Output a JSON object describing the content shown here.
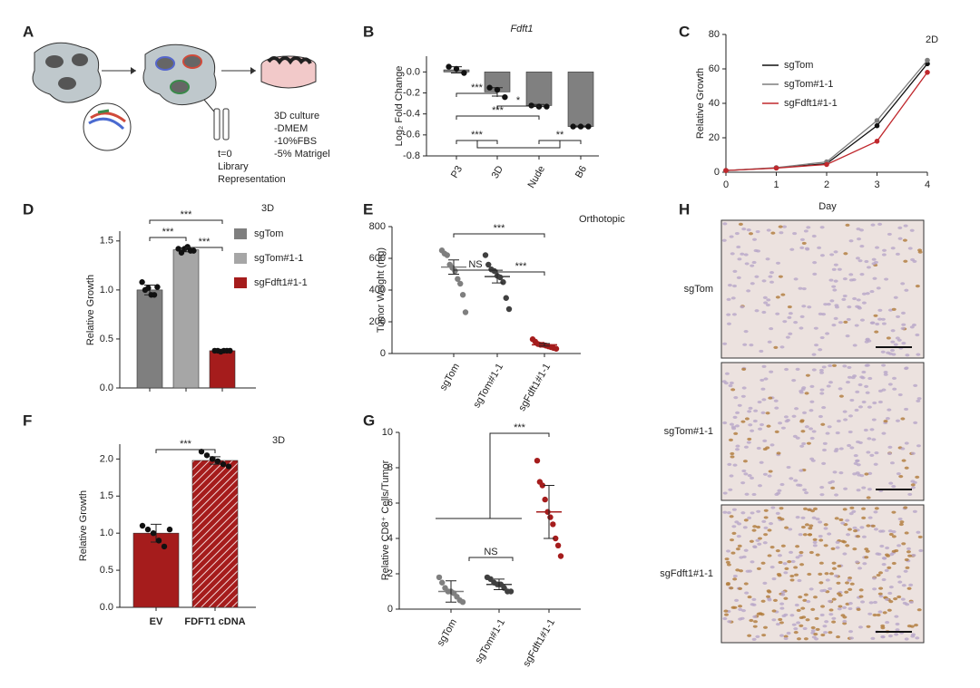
{
  "figure": {
    "A": {
      "panel": "A",
      "texts": [
        "t=0",
        "Library",
        "Representation",
        "3D culture",
        "-DMEM",
        "-10%FBS",
        "-5% Matrigel"
      ]
    },
    "H": {
      "panel": "H",
      "labels": [
        "sgTom",
        "sgTom#1-1",
        "sgFdft1#1-1"
      ]
    }
  },
  "chart_data": [
    {
      "type": "bar",
      "panel": "B",
      "title": "Fdft1",
      "ylabel": "Log₂ Fold Change",
      "categories": [
        "P3",
        "3D",
        "Nude",
        "B6"
      ],
      "values": [
        0.02,
        -0.19,
        -0.32,
        -0.52
      ],
      "errors": [
        0.03,
        0.04,
        0.01,
        0.005
      ],
      "points": [
        [
          0.05,
          0.03,
          -0.01
        ],
        [
          -0.15,
          -0.17,
          -0.24
        ],
        [
          -0.32,
          -0.33,
          -0.33
        ],
        [
          -0.52,
          -0.52,
          -0.52
        ]
      ],
      "color": "#808080",
      "ylim": [
        -0.8,
        0.15
      ],
      "yticks": [
        {
          "value": 0,
          "label": "0.0"
        },
        -0.2,
        -0.4,
        -0.6,
        -0.8
      ],
      "annotations": [
        "***",
        "*",
        "***",
        "***",
        "**"
      ]
    },
    {
      "type": "line",
      "panel": "C",
      "title": "2D",
      "xlabel": "Day",
      "ylabel": "Relative Growth",
      "x": [
        0,
        1,
        2,
        3,
        4
      ],
      "xlim": [
        0,
        4
      ],
      "xticks": [
        0,
        1,
        2,
        3,
        4
      ],
      "ylim": [
        0,
        80
      ],
      "yticks": [
        0,
        20,
        40,
        60,
        80
      ],
      "series": [
        {
          "name": "sgTom",
          "color": "#111111",
          "values": [
            1,
            2.5,
            5,
            27,
            63
          ]
        },
        {
          "name": "sgTom#1-1",
          "color": "#7f7f7f",
          "values": [
            1,
            2.7,
            6,
            30,
            65
          ]
        },
        {
          "name": "sgFdft1#1-1",
          "color": "#c0282d",
          "values": [
            1,
            2.4,
            4.5,
            18,
            58
          ]
        }
      ]
    },
    {
      "type": "bar",
      "panel": "D",
      "title": "3D",
      "ylabel": "Relative Growth",
      "categories": [
        null,
        null,
        null
      ],
      "legend": [
        "sgTom",
        "sgTom#1-1",
        "sgFdft1#1-1"
      ],
      "values": [
        1.0,
        1.41,
        0.38
      ],
      "errors": [
        0.05,
        0.02,
        0.005
      ],
      "points": [
        [
          1.08,
          1.0,
          1.02,
          0.95,
          0.95,
          1.03
        ],
        [
          1.42,
          1.38,
          1.42,
          1.44,
          1.4,
          1.4
        ],
        [
          0.38,
          0.38,
          0.37,
          0.38,
          0.38,
          0.38
        ]
      ],
      "colors": [
        "#7f7f7f",
        "#a6a6a6",
        "#a51c1c"
      ],
      "ylim": [
        0,
        1.6
      ],
      "yticks": [
        {
          "value": 0,
          "label": "0.0"
        },
        0.5,
        {
          "value": 1,
          "label": "1.0"
        },
        1.5
      ],
      "annotations": [
        "***",
        "***",
        "***"
      ]
    },
    {
      "type": "dot",
      "panel": "E",
      "title": "Orthotopic",
      "ylabel": "Tumor Weight (mg)",
      "categories": [
        "sgTom",
        "sgTom#1-1",
        "sgFdft1#1-1"
      ],
      "values": [
        545,
        485,
        55
      ],
      "errors": [
        45,
        40,
        8
      ],
      "points": [
        [
          650,
          630,
          620,
          560,
          540,
          520,
          470,
          440,
          370,
          260
        ],
        [
          620,
          560,
          530,
          520,
          490,
          480,
          450,
          350,
          280
        ],
        [
          90,
          75,
          60,
          55,
          55,
          50,
          45,
          40,
          35,
          30
        ]
      ],
      "colors": [
        "#7f7f7f",
        "#404040",
        "#a51c1c"
      ],
      "ylim": [
        0,
        800
      ],
      "yticks": [
        0,
        200,
        400,
        600,
        800
      ],
      "annotations": [
        "***",
        "NS",
        "***"
      ]
    },
    {
      "type": "bar",
      "panel": "F",
      "title": "3D",
      "ylabel": "Relative Growth",
      "categories": [
        "EV",
        "FDFT1 cDNA"
      ],
      "values": [
        1.0,
        1.98
      ],
      "errors": [
        0.12,
        0.05
      ],
      "points": [
        [
          1.1,
          1.05,
          1.0,
          0.9,
          0.82,
          1.05
        ],
        [
          2.1,
          2.05,
          2.0,
          1.97,
          1.93,
          1.9
        ]
      ],
      "color": "#a51c1c",
      "hatch": [
        false,
        true
      ],
      "ylim": [
        0,
        2.2
      ],
      "yticks": [
        {
          "value": 0,
          "label": "0.0"
        },
        0.5,
        {
          "value": 1,
          "label": "1.0"
        },
        1.5,
        {
          "value": 2,
          "label": "2.0"
        }
      ],
      "annotations": [
        "***"
      ]
    },
    {
      "type": "dot",
      "panel": "G",
      "ylabel": "Relative CD8⁺ Cells/Tumor",
      "categories": [
        "sgTom",
        "sgTom#1-1",
        "sgFdft1#1-1"
      ],
      "values": [
        1.0,
        1.4,
        5.5
      ],
      "errors": [
        0.6,
        0.3,
        1.5
      ],
      "points": [
        [
          1.8,
          1.5,
          1.2,
          1.0,
          1.0,
          0.9,
          0.7,
          0.5,
          0.4
        ],
        [
          1.8,
          1.7,
          1.5,
          1.4,
          1.4,
          1.2,
          1.0,
          1.0
        ],
        [
          8.4,
          7.2,
          7.0,
          6.2,
          5.5,
          5.2,
          4.8,
          4.0,
          3.6,
          3.0
        ]
      ],
      "colors": [
        "#7f7f7f",
        "#404040",
        "#a51c1c"
      ],
      "ylim": [
        0,
        10
      ],
      "yticks": [
        0,
        2,
        4,
        6,
        8,
        10
      ],
      "annotations": [
        "***",
        "NS"
      ]
    }
  ]
}
